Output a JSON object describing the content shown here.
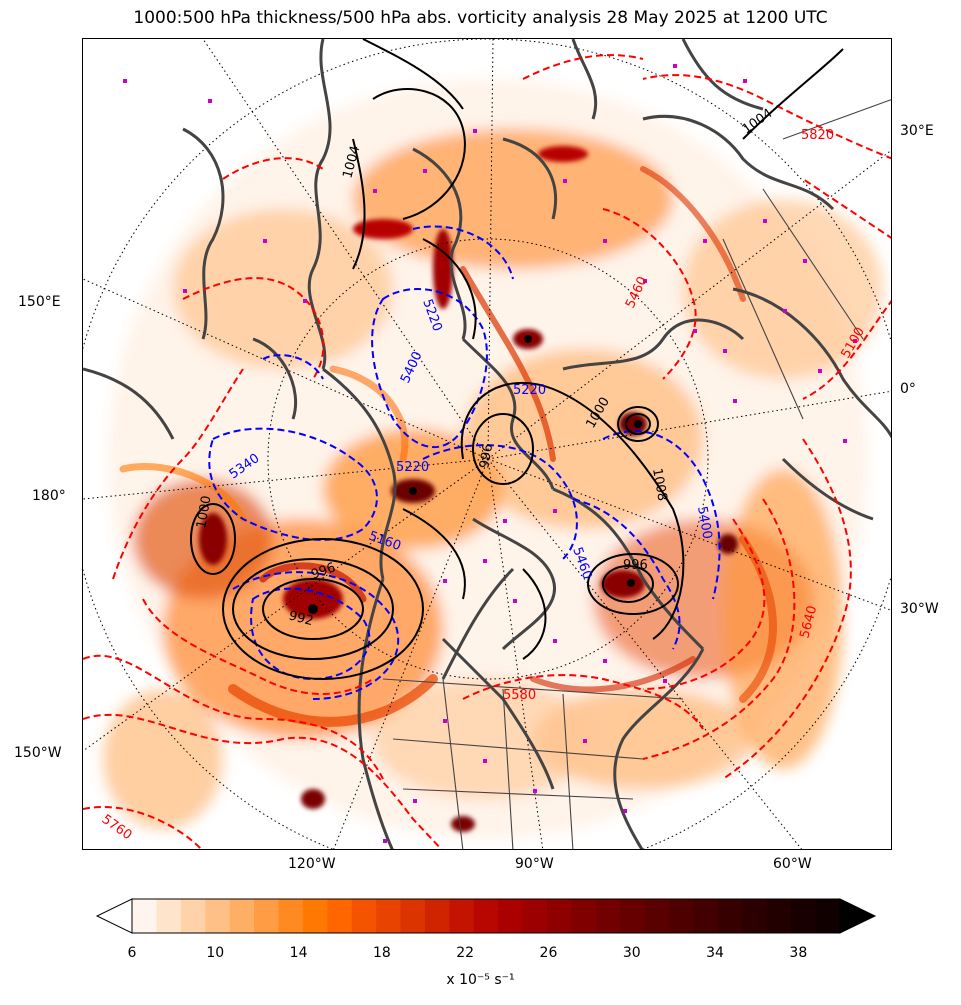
{
  "title": "1000:500 hPa thickness/500 hPa abs. vorticity analysis 28 May 2025 at 1200 UTC",
  "lon_labels": {
    "e30": "30°E",
    "e150": "150°E",
    "zero": "0°",
    "d180": "180°",
    "w30": "30°W",
    "w150": "150°W",
    "w120": "120°W",
    "w90": "90°W",
    "w60": "60°W"
  },
  "contours": {
    "thickness_labels": [
      "5820",
      "5220",
      "5220",
      "5340",
      "5460",
      "5400",
      "5640",
      "5580",
      "5760",
      "5460",
      "5100",
      "5400",
      "5220",
      "5160"
    ],
    "mslp_labels": [
      "1004",
      "1004",
      "996",
      "1000",
      "1008",
      "996",
      "992",
      "1000",
      "996"
    ]
  },
  "colorbar": {
    "ticks": [
      "6",
      "10",
      "14",
      "18",
      "22",
      "26",
      "30",
      "34",
      "38"
    ],
    "units": "x 10⁻⁵ s⁻¹",
    "colors": [
      "#fff5ee",
      "#ffe4cc",
      "#ffd2aa",
      "#ffc088",
      "#ffae66",
      "#ff9c44",
      "#ff8a22",
      "#ff7800",
      "#ff6600",
      "#f45400",
      "#e84400",
      "#dc3400",
      "#d02400",
      "#c41400",
      "#b80600",
      "#aa0000",
      "#9c0000",
      "#8e0000",
      "#800000",
      "#720000",
      "#660000",
      "#5a0000",
      "#4e0000",
      "#420000",
      "#360000",
      "#2c0000",
      "#220000",
      "#180000",
      "#100000"
    ]
  },
  "colors": {
    "thickness_warm": "#ff0000",
    "thickness_cold": "#0000ff",
    "mslp": "#000000",
    "coast": "#444444",
    "markers": "#cc00cc"
  }
}
